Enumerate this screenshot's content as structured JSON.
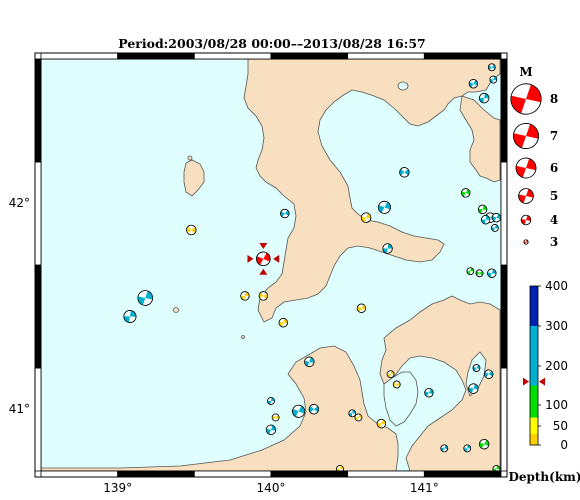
{
  "title": "Period:2003/08/28 00:00––2013/08/28 16:57",
  "map": {
    "lon_range": [
      138.5,
      141.5
    ],
    "lat_range": [
      40.7,
      42.7
    ],
    "lon_ticks": [
      {
        "value": 139,
        "label": "139°"
      },
      {
        "value": 140,
        "label": "140°"
      },
      {
        "value": 141,
        "label": "141°"
      }
    ],
    "lat_ticks": [
      {
        "value": 41,
        "label": "41°"
      },
      {
        "value": 42,
        "label": "42°"
      }
    ],
    "colors": {
      "sea": "#dfffff",
      "land": "#f7dfc0",
      "coast": "#555555"
    }
  },
  "magnitude_legend": {
    "header": "M",
    "items": [
      {
        "mag": 8,
        "label": "8"
      },
      {
        "mag": 7,
        "label": "7"
      },
      {
        "mag": 6,
        "label": "6"
      },
      {
        "mag": 5,
        "label": "5"
      },
      {
        "mag": 4,
        "label": "4"
      },
      {
        "mag": 3,
        "label": "3"
      }
    ],
    "color": "#ff0000"
  },
  "depth_legend": {
    "title": "Depth(km)",
    "bands": [
      {
        "from": 0,
        "to": 30,
        "color": "#ffd000"
      },
      {
        "from": 30,
        "to": 70,
        "color": "#ffff00"
      },
      {
        "from": 70,
        "to": 150,
        "color": "#00e000"
      },
      {
        "from": 150,
        "to": 300,
        "color": "#00b0d0"
      },
      {
        "from": 300,
        "to": 400,
        "color": "#0020b0"
      }
    ],
    "tick_labels": [
      {
        "value": 0,
        "label": "0"
      },
      {
        "value": 50,
        "label": "50"
      },
      {
        "value": 100,
        "label": "100"
      },
      {
        "value": 200,
        "label": "200"
      },
      {
        "value": 300,
        "label": "300"
      },
      {
        "value": 400,
        "label": "400"
      }
    ],
    "marker_depth": 160
  },
  "events": [
    {
      "lon": 139.95,
      "lat": 41.73,
      "mag": 4.8,
      "depth": 10,
      "color": "#ff0000",
      "rot": 40,
      "highlight": true
    },
    {
      "lon": 139.18,
      "lat": 41.54,
      "mag": 5.0,
      "depth": 200,
      "color": "#00b0d0",
      "rot": 30
    },
    {
      "lon": 139.08,
      "lat": 41.45,
      "mag": 4.5,
      "depth": 200,
      "color": "#00b0d0",
      "rot": 20
    },
    {
      "lon": 139.48,
      "lat": 41.87,
      "mag": 4.0,
      "depth": 10,
      "color": "#ffd000",
      "rot": 60
    },
    {
      "lon": 139.83,
      "lat": 41.55,
      "mag": 3.8,
      "depth": 10,
      "color": "#ffd000",
      "rot": 20
    },
    {
      "lon": 139.95,
      "lat": 41.55,
      "mag": 3.8,
      "depth": 10,
      "color": "#ffd000",
      "rot": 70
    },
    {
      "lon": 140.08,
      "lat": 41.42,
      "mag": 3.8,
      "depth": 10,
      "color": "#ffd000",
      "rot": 30
    },
    {
      "lon": 140.09,
      "lat": 41.95,
      "mag": 3.8,
      "depth": 200,
      "color": "#00b0d0",
      "rot": 50
    },
    {
      "lon": 140.76,
      "lat": 41.78,
      "mag": 4.0,
      "depth": 200,
      "color": "#00b0d0",
      "rot": 20
    },
    {
      "lon": 140.74,
      "lat": 41.98,
      "mag": 4.5,
      "depth": 200,
      "color": "#00b0d0",
      "rot": 40
    },
    {
      "lon": 140.87,
      "lat": 42.15,
      "mag": 4.0,
      "depth": 200,
      "color": "#00b0d0",
      "rot": 60
    },
    {
      "lon": 140.59,
      "lat": 41.49,
      "mag": 3.8,
      "depth": 10,
      "color": "#ffd000",
      "rot": 40
    },
    {
      "lon": 140.62,
      "lat": 41.93,
      "mag": 4.0,
      "depth": 10,
      "color": "#ffd000",
      "rot": 30
    },
    {
      "lon": 140.78,
      "lat": 41.17,
      "mag": 3.5,
      "depth": 10,
      "color": "#ffd000",
      "rot": 20
    },
    {
      "lon": 140.82,
      "lat": 41.12,
      "mag": 3.5,
      "depth": 10,
      "color": "#ffd000",
      "rot": 60
    },
    {
      "lon": 140.25,
      "lat": 41.23,
      "mag": 4.0,
      "depth": 200,
      "color": "#00b0d0",
      "rot": 30
    },
    {
      "lon": 140.18,
      "lat": 40.99,
      "mag": 4.5,
      "depth": 200,
      "color": "#00b0d0",
      "rot": 40
    },
    {
      "lon": 140.0,
      "lat": 41.04,
      "mag": 3.5,
      "depth": 200,
      "color": "#00b0d0",
      "rot": 20
    },
    {
      "lon": 140.03,
      "lat": 40.96,
      "mag": 3.5,
      "depth": 10,
      "color": "#ffd000",
      "rot": 50
    },
    {
      "lon": 140.0,
      "lat": 40.9,
      "mag": 4.0,
      "depth": 200,
      "color": "#00b0d0",
      "rot": 30
    },
    {
      "lon": 140.28,
      "lat": 41.0,
      "mag": 4.0,
      "depth": 200,
      "color": "#00b0d0",
      "rot": 60
    },
    {
      "lon": 140.53,
      "lat": 40.98,
      "mag": 3.5,
      "depth": 200,
      "color": "#00b0d0",
      "rot": 20
    },
    {
      "lon": 140.57,
      "lat": 40.96,
      "mag": 3.5,
      "depth": 10,
      "color": "#ffd000",
      "rot": 30
    },
    {
      "lon": 141.03,
      "lat": 41.08,
      "mag": 3.8,
      "depth": 200,
      "color": "#00b0d0",
      "rot": 40
    },
    {
      "lon": 140.72,
      "lat": 40.93,
      "mag": 3.8,
      "depth": 10,
      "color": "#ffd000",
      "rot": 30
    },
    {
      "lon": 140.45,
      "lat": 40.71,
      "mag": 3.5,
      "depth": 10,
      "color": "#ffd000",
      "rot": 20
    },
    {
      "lon": 141.34,
      "lat": 41.2,
      "mag": 3.5,
      "depth": 200,
      "color": "#00b0d0",
      "rot": 40
    },
    {
      "lon": 141.32,
      "lat": 41.1,
      "mag": 4.0,
      "depth": 200,
      "color": "#00b0d0",
      "rot": 30
    },
    {
      "lon": 141.42,
      "lat": 41.17,
      "mag": 3.8,
      "depth": 200,
      "color": "#00b0d0",
      "rot": 50
    },
    {
      "lon": 141.13,
      "lat": 40.81,
      "mag": 3.5,
      "depth": 200,
      "color": "#00b0d0",
      "rot": 30
    },
    {
      "lon": 141.28,
      "lat": 40.81,
      "mag": 3.5,
      "depth": 200,
      "color": "#00b0d0",
      "rot": 20
    },
    {
      "lon": 141.39,
      "lat": 40.83,
      "mag": 4.0,
      "depth": 100,
      "color": "#00e000",
      "rot": 40
    },
    {
      "lon": 141.47,
      "lat": 40.71,
      "mag": 3.5,
      "depth": 100,
      "color": "#00e000",
      "rot": 20
    },
    {
      "lon": 141.38,
      "lat": 41.97,
      "mag": 3.8,
      "depth": 100,
      "color": "#00e000",
      "rot": 30
    },
    {
      "lon": 141.43,
      "lat": 41.93,
      "mag": 4.0,
      "depth": 100,
      "color": "#00e000",
      "rot": 60
    },
    {
      "lon": 141.4,
      "lat": 41.92,
      "mag": 3.8,
      "depth": 200,
      "color": "#00b0d0",
      "rot": 20
    },
    {
      "lon": 141.47,
      "lat": 41.93,
      "mag": 3.8,
      "depth": 200,
      "color": "#00b0d0",
      "rot": 40
    },
    {
      "lon": 141.46,
      "lat": 41.88,
      "mag": 3.5,
      "depth": 200,
      "color": "#00b0d0",
      "rot": 30
    },
    {
      "lon": 141.27,
      "lat": 42.05,
      "mag": 3.8,
      "depth": 100,
      "color": "#00e000",
      "rot": 40
    },
    {
      "lon": 141.3,
      "lat": 41.67,
      "mag": 3.5,
      "depth": 100,
      "color": "#00e000",
      "rot": 20
    },
    {
      "lon": 141.36,
      "lat": 41.66,
      "mag": 3.5,
      "depth": 100,
      "color": "#00e000",
      "rot": 60
    },
    {
      "lon": 141.44,
      "lat": 41.66,
      "mag": 3.8,
      "depth": 200,
      "color": "#00b0d0",
      "rot": 30
    },
    {
      "lon": 141.32,
      "lat": 42.58,
      "mag": 3.8,
      "depth": 200,
      "color": "#00b0d0",
      "rot": 40
    },
    {
      "lon": 141.45,
      "lat": 42.6,
      "mag": 3.5,
      "depth": 200,
      "color": "#00b0d0",
      "rot": 30
    },
    {
      "lon": 141.39,
      "lat": 42.51,
      "mag": 4.0,
      "depth": 200,
      "color": "#00b0d0",
      "rot": 20
    },
    {
      "lon": 141.44,
      "lat": 42.66,
      "mag": 3.5,
      "depth": 200,
      "color": "#00b0d0",
      "rot": 50
    }
  ]
}
